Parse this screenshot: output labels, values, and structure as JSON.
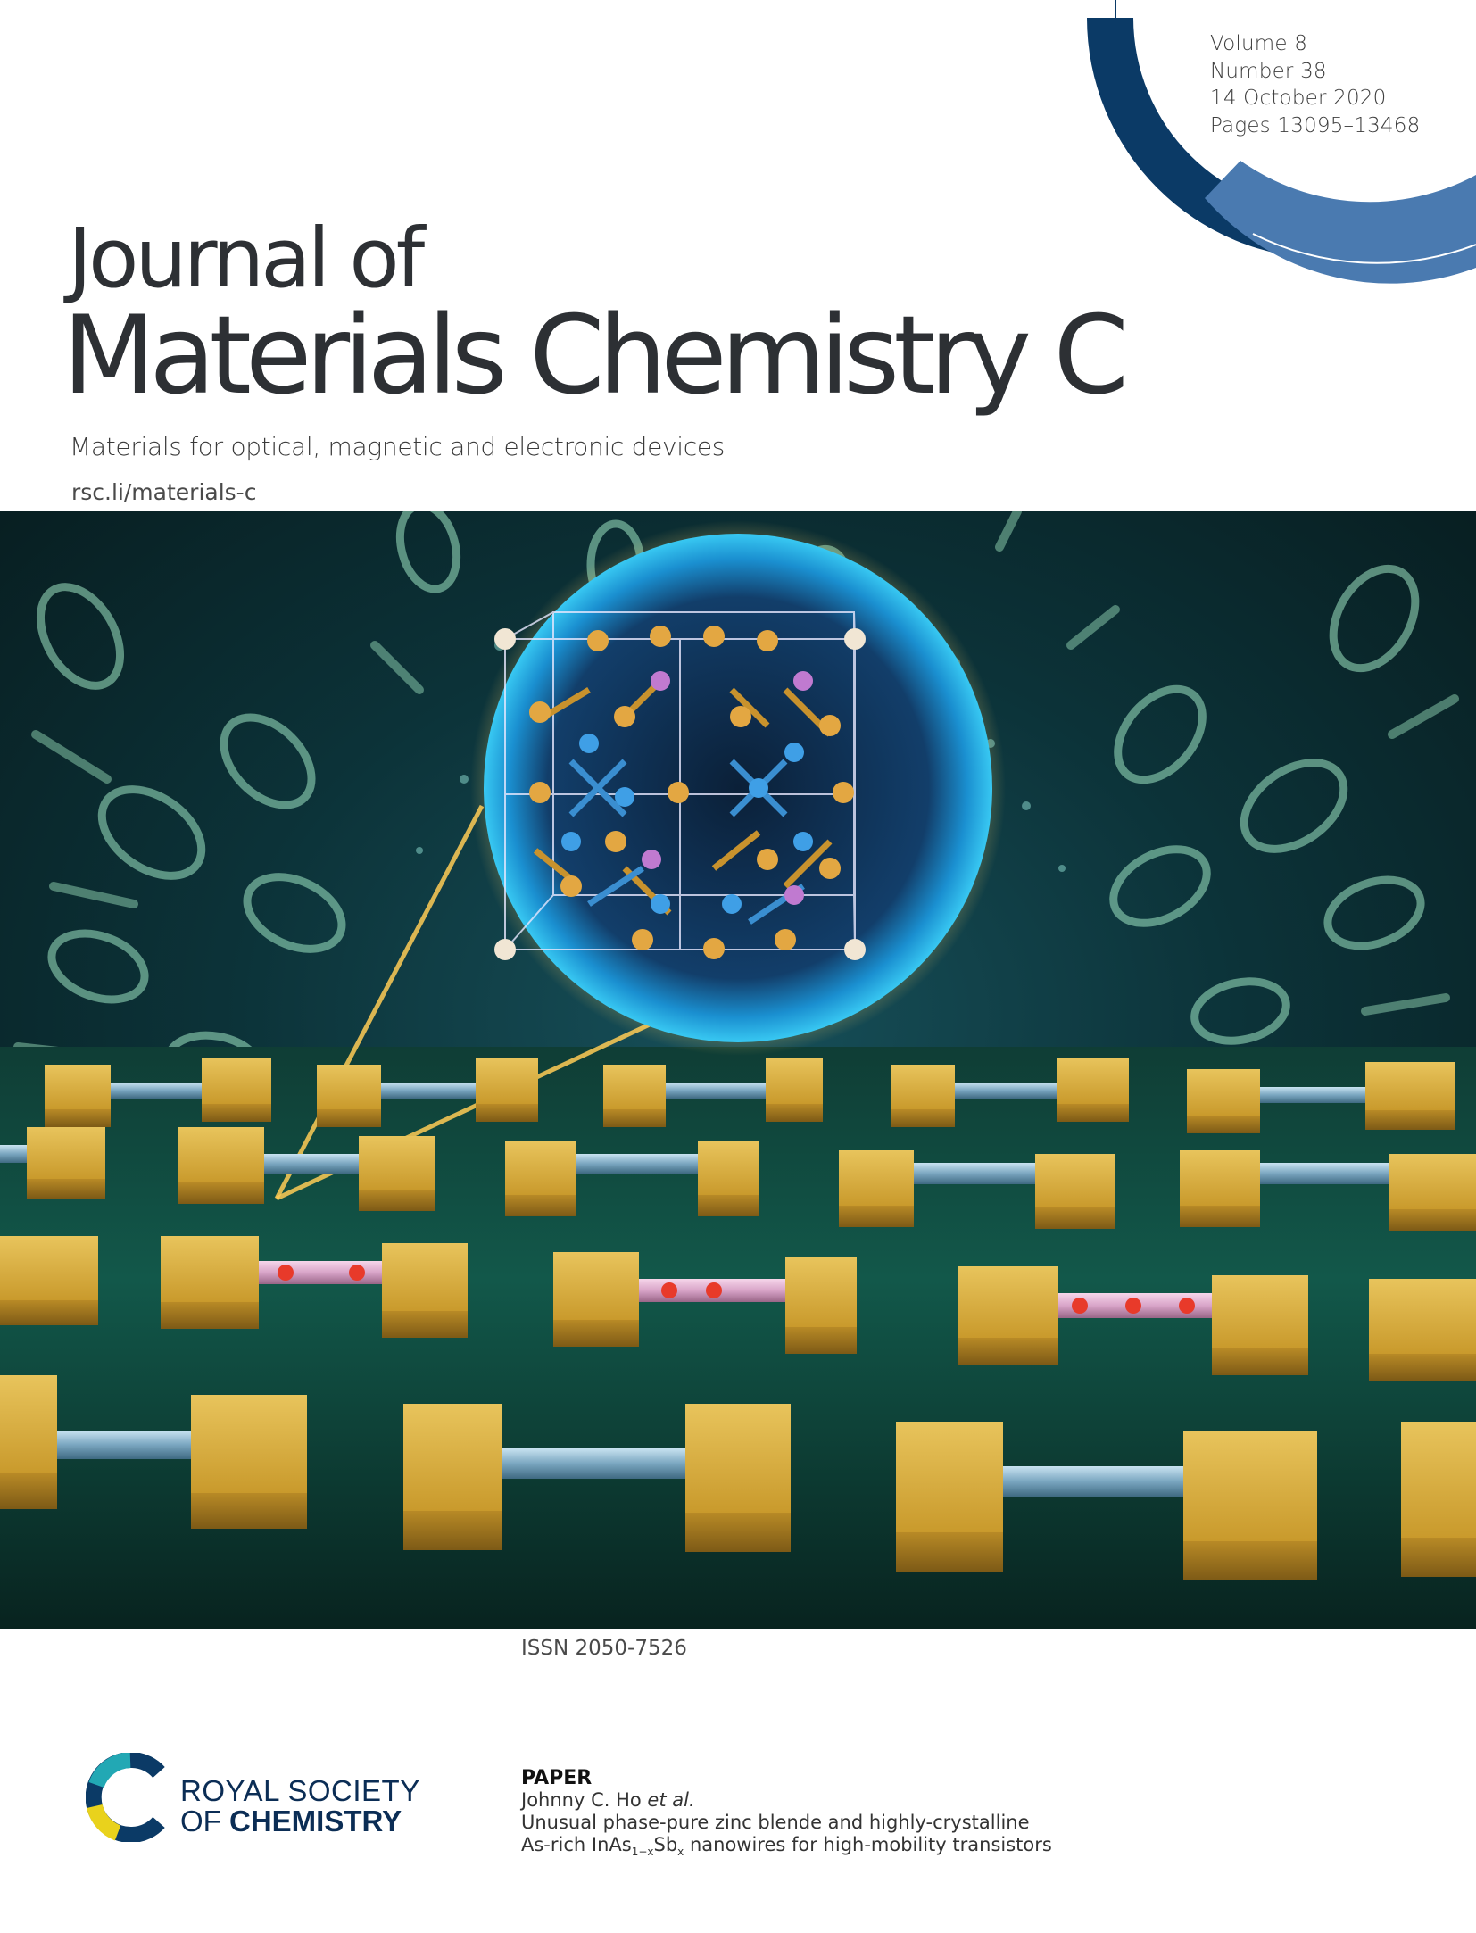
{
  "issue": {
    "volume": "Volume 8",
    "number": "Number 38",
    "date": "14 October 2020",
    "pages": "Pages 13095–13468"
  },
  "journal": {
    "title_line1": "Journal of",
    "title_line2": "Materials Chemistry C",
    "subtitle": "Materials for optical, magnetic and electronic devices",
    "url": "rsc.li/materials-c"
  },
  "issn": "ISSN 2050-7526",
  "publisher": {
    "name_line1": "ROYAL SOCIETY",
    "name_line2_prefix": "OF",
    "name_line2_bold": "CHEMISTRY"
  },
  "paper": {
    "label": "PAPER",
    "authors": "Johnny C. Ho",
    "et_al": "et al.",
    "title_line1": "Unusual phase-pure zinc blende and highly-crystalline",
    "title_line2_a": "As-rich InAs",
    "title_line2_sub1": "1−x",
    "title_line2_b": "Sb",
    "title_line2_sub2": "x",
    "title_line2_c": " nanowires for high-mobility transistors"
  },
  "colors": {
    "navy": "#0b3a66",
    "steel_blue": "#4a7ab0",
    "rsc_teal": "#22a8b4",
    "rsc_yellow": "#e9d21c",
    "title_text": "#2d3034"
  }
}
